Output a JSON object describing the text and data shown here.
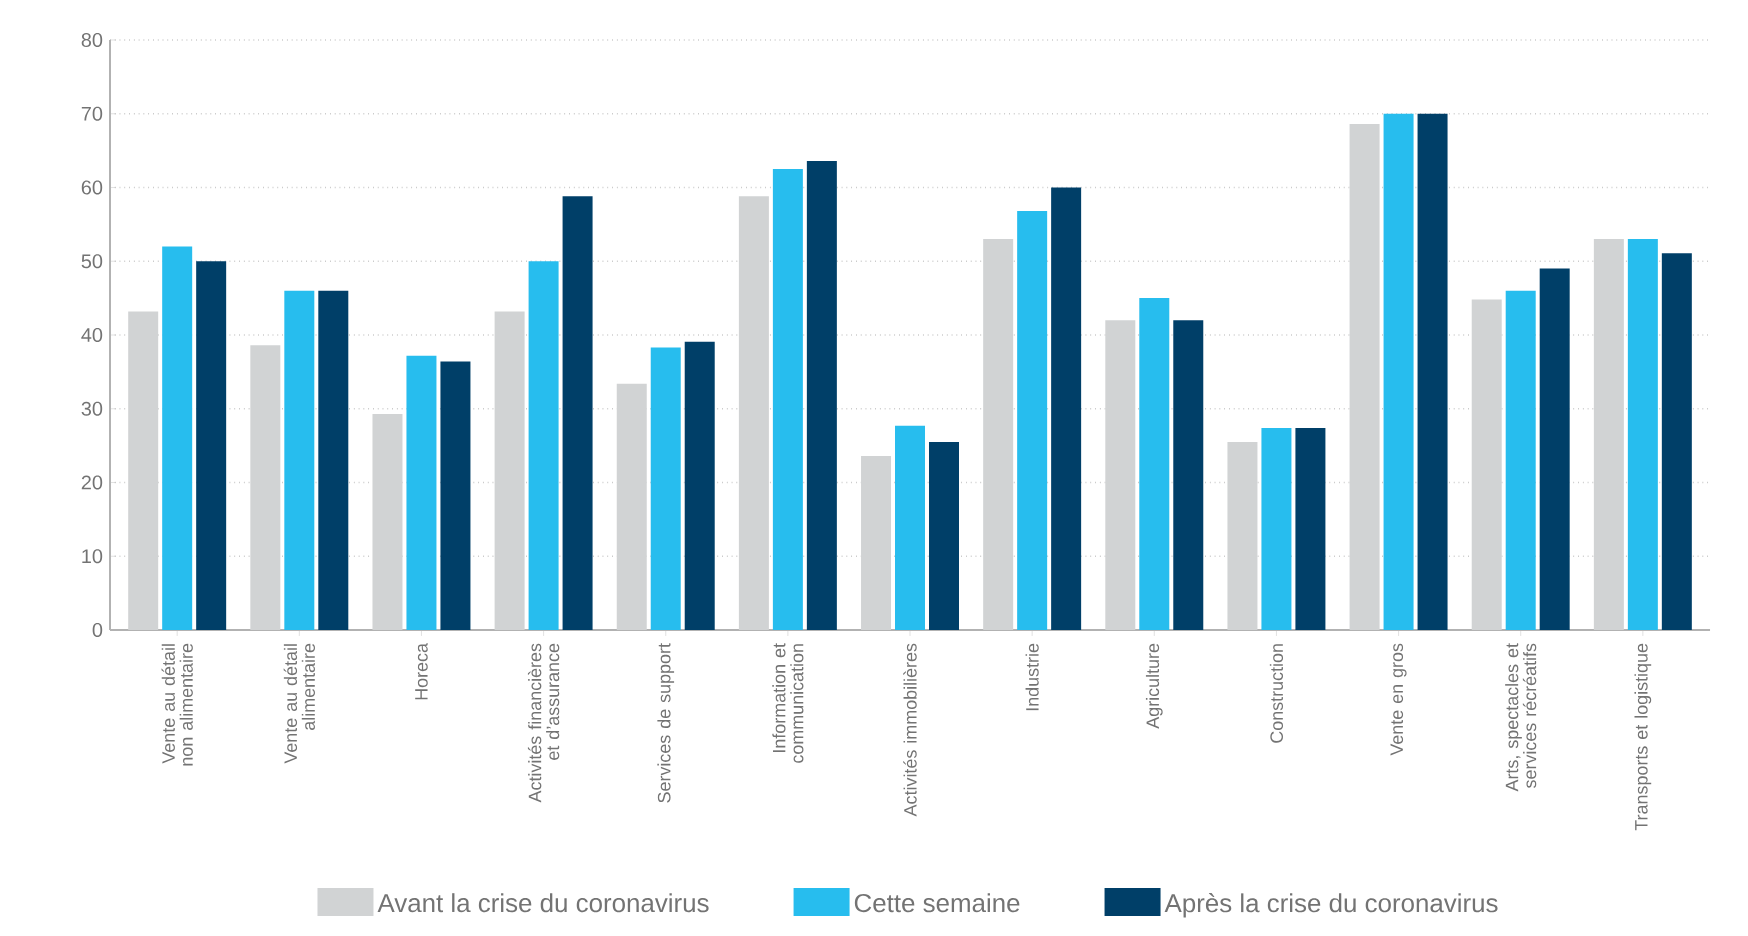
{
  "chart_data": {
    "type": "bar",
    "categories": [
      "Vente au détail non alimentaire",
      "Vente au détail alimentaire",
      "Horeca",
      "Activités financières et d’assurance",
      "Services de support",
      "Information et communication",
      "Activités immobilières",
      "Industrie",
      "Agriculture",
      "Construction",
      "Vente en gros",
      "Arts, spectacles et services récréatifs",
      "Transports et logistique"
    ],
    "series": [
      {
        "name": "Avant la crise du coronavirus",
        "color": "#d1d3d4",
        "values": [
          43.2,
          38.6,
          29.3,
          43.2,
          33.4,
          58.8,
          23.6,
          53,
          42,
          25.5,
          68.6,
          44.8,
          53
        ]
      },
      {
        "name": "Cette semaine",
        "color": "#27bdee",
        "values": [
          52,
          46,
          37.2,
          50,
          38.3,
          62.5,
          27.7,
          56.8,
          45,
          27.4,
          70,
          46,
          53
        ]
      },
      {
        "name": "Après la crise du coronavirus",
        "color": "#003f68",
        "values": [
          50,
          46,
          36.4,
          58.8,
          39.1,
          63.6,
          25.5,
          60,
          42,
          27.4,
          70,
          49,
          51.1
        ]
      }
    ],
    "ylim": [
      0,
      80
    ],
    "yticks": [
      0,
      10,
      20,
      30,
      40,
      50,
      60,
      70,
      80
    ],
    "grid": "y",
    "legend": "bottom"
  }
}
